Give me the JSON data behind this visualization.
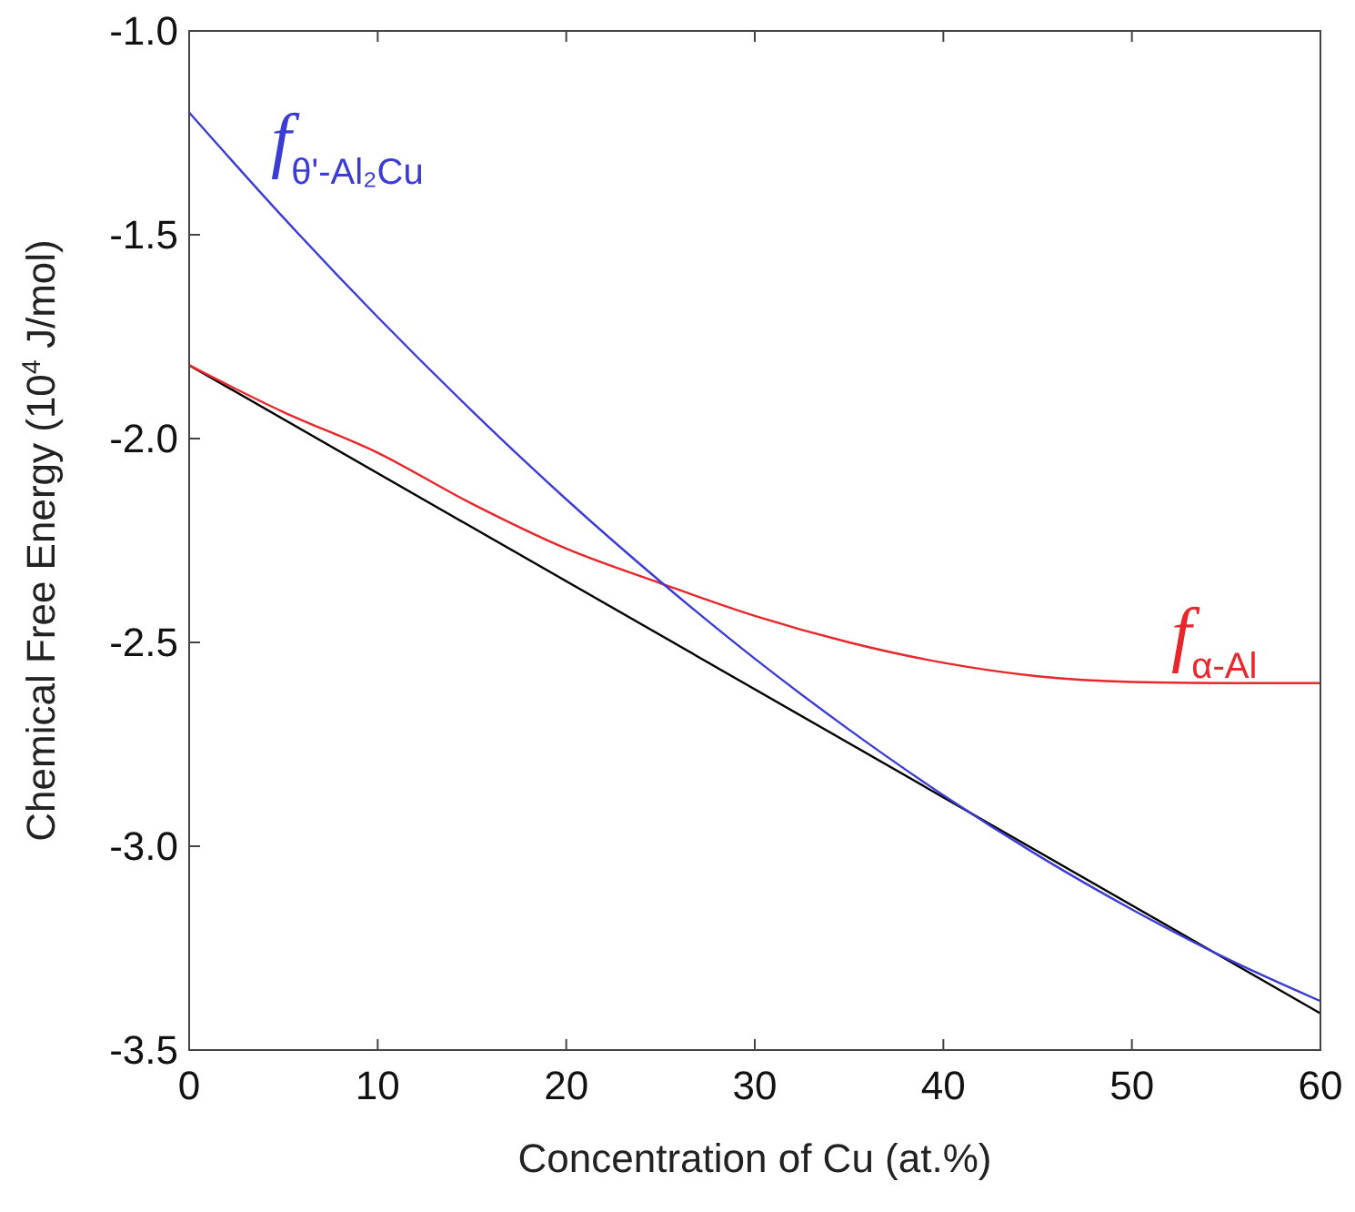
{
  "chart_data": {
    "type": "line",
    "xlabel": "Concentration of Cu (at.%)",
    "ylabel": "Chemical Free Energy (10$^{4}$ J/mol)",
    "xlim": [
      0,
      60
    ],
    "xticks": [
      0,
      10,
      20,
      30,
      40,
      50,
      60
    ],
    "ylim": [
      -3.5,
      -1.0
    ],
    "yticks": [
      {
        "value": -3.5,
        "label": "-3.5"
      },
      {
        "value": -3,
        "label": "-3.0"
      },
      {
        "value": -2.5,
        "label": "-2.5"
      },
      {
        "value": -2,
        "label": "-2.0"
      },
      {
        "value": -1.5,
        "label": "-1.5"
      },
      {
        "value": -1,
        "label": "-1.0"
      }
    ],
    "grid": false,
    "marker": "none",
    "line_style": "solid",
    "series": [
      {
        "color": "#000000",
        "x": [
          0,
          60
        ],
        "values": [
          -1.82,
          -3.41
        ]
      },
      {
        "name": "f$_{α-Al}$",
        "color": "#e8262b",
        "x": [
          0,
          5,
          10,
          15,
          20,
          25,
          30,
          35,
          40,
          45,
          50,
          55,
          60
        ],
        "values": [
          -1.82,
          -1.935,
          -2.035,
          -2.16,
          -2.27,
          -2.355,
          -2.435,
          -2.5,
          -2.55,
          -2.583,
          -2.597,
          -2.6,
          -2.6
        ]
      },
      {
        "name": "f$_{θ'-Al₂Cu}$",
        "color": "#3b3bd6",
        "x": [
          0,
          5,
          10,
          15,
          20,
          25,
          30,
          35,
          40,
          45,
          50,
          55,
          60
        ],
        "values": [
          -1.2,
          -1.458,
          -1.702,
          -1.932,
          -2.149,
          -2.351,
          -2.54,
          -2.714,
          -2.875,
          -3.022,
          -3.155,
          -3.275,
          -3.38
        ]
      }
    ]
  }
}
